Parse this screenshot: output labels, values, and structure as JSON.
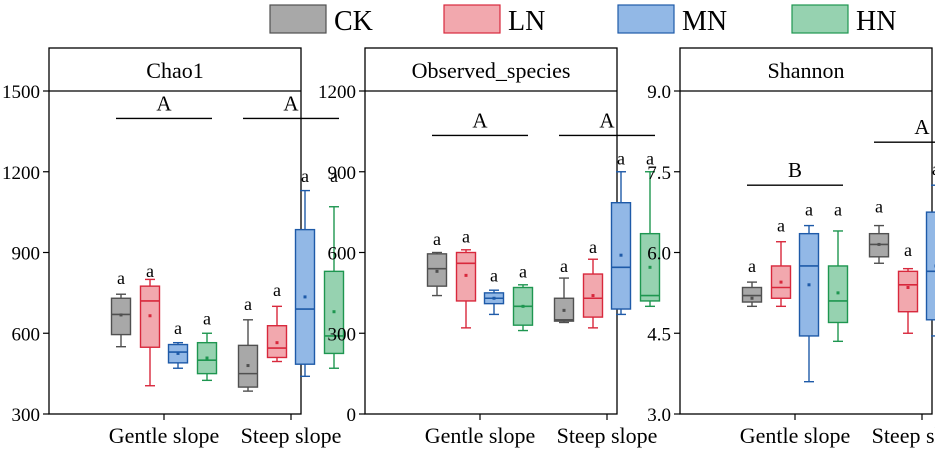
{
  "legend": [
    {
      "label": "CK",
      "fill": "#a8a8a8",
      "stroke": "#505050"
    },
    {
      "label": "LN",
      "fill": "#f2a8ae",
      "stroke": "#d8283c"
    },
    {
      "label": "MN",
      "fill": "#92b8e6",
      "stroke": "#1e5aa8"
    },
    {
      "label": "HN",
      "fill": "#96d2b0",
      "stroke": "#1e9650"
    }
  ],
  "chart_data": [
    {
      "type": "box",
      "title": "Chao1",
      "categories": [
        "Gentle slope",
        "Steep slope"
      ],
      "ylim": [
        300,
        1500
      ],
      "yticks": [
        300,
        600,
        900,
        1200,
        1500
      ],
      "yticklabels": [
        "300",
        "600",
        "900",
        "1200",
        "1500"
      ],
      "groupLetters": [
        {
          "text": "A",
          "value": 1398
        },
        {
          "text": "A",
          "value": 1398
        }
      ],
      "boxes": [
        {
          "cat": 0,
          "series": 0,
          "min": 550,
          "q1": 595,
          "median": 670,
          "q3": 730,
          "max": 745,
          "mean": 668,
          "letter": "a",
          "letterValue": 805
        },
        {
          "cat": 0,
          "series": 1,
          "min": 405,
          "q1": 548,
          "median": 720,
          "q3": 775,
          "max": 800,
          "mean": 665,
          "letter": "a",
          "letterValue": 832
        },
        {
          "cat": 0,
          "series": 2,
          "min": 470,
          "q1": 490,
          "median": 530,
          "q3": 558,
          "max": 565,
          "mean": 525,
          "letter": "a",
          "letterValue": 620
        },
        {
          "cat": 0,
          "series": 3,
          "min": 425,
          "q1": 450,
          "median": 500,
          "q3": 565,
          "max": 600,
          "mean": 508,
          "letter": "a",
          "letterValue": 655
        },
        {
          "cat": 1,
          "series": 0,
          "min": 385,
          "q1": 400,
          "median": 450,
          "q3": 555,
          "max": 650,
          "mean": 480,
          "letter": "a",
          "letterValue": 708
        },
        {
          "cat": 1,
          "series": 1,
          "min": 495,
          "q1": 510,
          "median": 545,
          "q3": 628,
          "max": 700,
          "mean": 565,
          "letter": "a",
          "letterValue": 760
        },
        {
          "cat": 1,
          "series": 2,
          "min": 440,
          "q1": 485,
          "median": 690,
          "q3": 985,
          "max": 1130,
          "mean": 735,
          "letter": "a",
          "letterValue": 1185
        },
        {
          "cat": 1,
          "series": 3,
          "min": 470,
          "q1": 525,
          "median": 590,
          "q3": 830,
          "max": 1070,
          "mean": 680,
          "letter": "a",
          "letterValue": 1185
        }
      ]
    },
    {
      "type": "box",
      "title": "Observed_species",
      "categories": [
        "Gentle slope",
        "Steep slope"
      ],
      "ylim": [
        0,
        1200
      ],
      "yticks": [
        0,
        300,
        600,
        900,
        1200
      ],
      "yticklabels": [
        "0",
        "300",
        "600",
        "900",
        "1200"
      ],
      "groupLetters": [
        {
          "text": "A",
          "value": 1035
        },
        {
          "text": "A",
          "value": 1035
        }
      ],
      "boxes": [
        {
          "cat": 0,
          "series": 0,
          "min": 440,
          "q1": 475,
          "median": 540,
          "q3": 595,
          "max": 600,
          "mean": 530,
          "letter": "a",
          "letterValue": 650
        },
        {
          "cat": 0,
          "series": 1,
          "min": 320,
          "q1": 420,
          "median": 560,
          "q3": 600,
          "max": 610,
          "mean": 515,
          "letter": "a",
          "letterValue": 660
        },
        {
          "cat": 0,
          "series": 2,
          "min": 370,
          "q1": 410,
          "median": 430,
          "q3": 450,
          "max": 460,
          "mean": 430,
          "letter": "a",
          "letterValue": 515
        },
        {
          "cat": 0,
          "series": 3,
          "min": 310,
          "q1": 330,
          "median": 400,
          "q3": 470,
          "max": 480,
          "mean": 400,
          "letter": "a",
          "letterValue": 530
        },
        {
          "cat": 1,
          "series": 0,
          "min": 340,
          "q1": 345,
          "median": 350,
          "q3": 430,
          "max": 505,
          "mean": 385,
          "letter": "a",
          "letterValue": 550
        },
        {
          "cat": 1,
          "series": 1,
          "min": 320,
          "q1": 360,
          "median": 430,
          "q3": 520,
          "max": 575,
          "mean": 440,
          "letter": "a",
          "letterValue": 620
        },
        {
          "cat": 1,
          "series": 2,
          "min": 370,
          "q1": 390,
          "median": 545,
          "q3": 785,
          "max": 900,
          "mean": 590,
          "letter": "a",
          "letterValue": 950
        },
        {
          "cat": 1,
          "series": 3,
          "min": 400,
          "q1": 420,
          "median": 440,
          "q3": 670,
          "max": 900,
          "mean": 545,
          "letter": "a",
          "letterValue": 950
        }
      ]
    },
    {
      "type": "box",
      "title": "Shannon",
      "categories": [
        "Gentle slope",
        "Steep slope"
      ],
      "ylim": [
        3.0,
        9.0
      ],
      "yticks": [
        3.0,
        4.5,
        6.0,
        7.5,
        9.0
      ],
      "yticklabels": [
        "3.0",
        "4.5",
        "6.0",
        "7.5",
        "9.0"
      ],
      "groupLetters": [
        {
          "text": "B",
          "value": 7.25
        },
        {
          "text": "A",
          "value": 8.05
        }
      ],
      "boxes": [
        {
          "cat": 0,
          "series": 0,
          "min": 5.0,
          "q1": 5.08,
          "median": 5.2,
          "q3": 5.35,
          "max": 5.45,
          "mean": 5.15,
          "letter": "a",
          "letterValue": 5.75
        },
        {
          "cat": 0,
          "series": 1,
          "min": 5.0,
          "q1": 5.15,
          "median": 5.35,
          "q3": 5.75,
          "max": 6.2,
          "mean": 5.45,
          "letter": "a",
          "letterValue": 6.5
        },
        {
          "cat": 0,
          "series": 2,
          "min": 3.6,
          "q1": 4.45,
          "median": 5.75,
          "q3": 6.35,
          "max": 6.5,
          "mean": 5.4,
          "letter": "a",
          "letterValue": 6.8
        },
        {
          "cat": 0,
          "series": 3,
          "min": 4.35,
          "q1": 4.7,
          "median": 5.1,
          "q3": 5.75,
          "max": 6.4,
          "mean": 5.25,
          "letter": "a",
          "letterValue": 6.8
        },
        {
          "cat": 1,
          "series": 0,
          "min": 5.8,
          "q1": 5.92,
          "median": 6.15,
          "q3": 6.35,
          "max": 6.5,
          "mean": 6.15,
          "letter": "a",
          "letterValue": 6.85
        },
        {
          "cat": 1,
          "series": 1,
          "min": 4.5,
          "q1": 4.9,
          "median": 5.4,
          "q3": 5.65,
          "max": 5.7,
          "mean": 5.35,
          "letter": "a",
          "letterValue": 6.05
        },
        {
          "cat": 1,
          "series": 2,
          "min": 4.45,
          "q1": 4.75,
          "median": 5.65,
          "q3": 6.75,
          "max": 7.25,
          "mean": 5.75,
          "letter": "a",
          "letterValue": 7.55
        },
        {
          "cat": 1,
          "series": 3,
          "min": 6.1,
          "q1": 6.2,
          "median": 6.45,
          "q3": 6.85,
          "max": 7.4,
          "mean": 6.5,
          "letter": "a",
          "letterValue": 7.72
        }
      ]
    }
  ]
}
